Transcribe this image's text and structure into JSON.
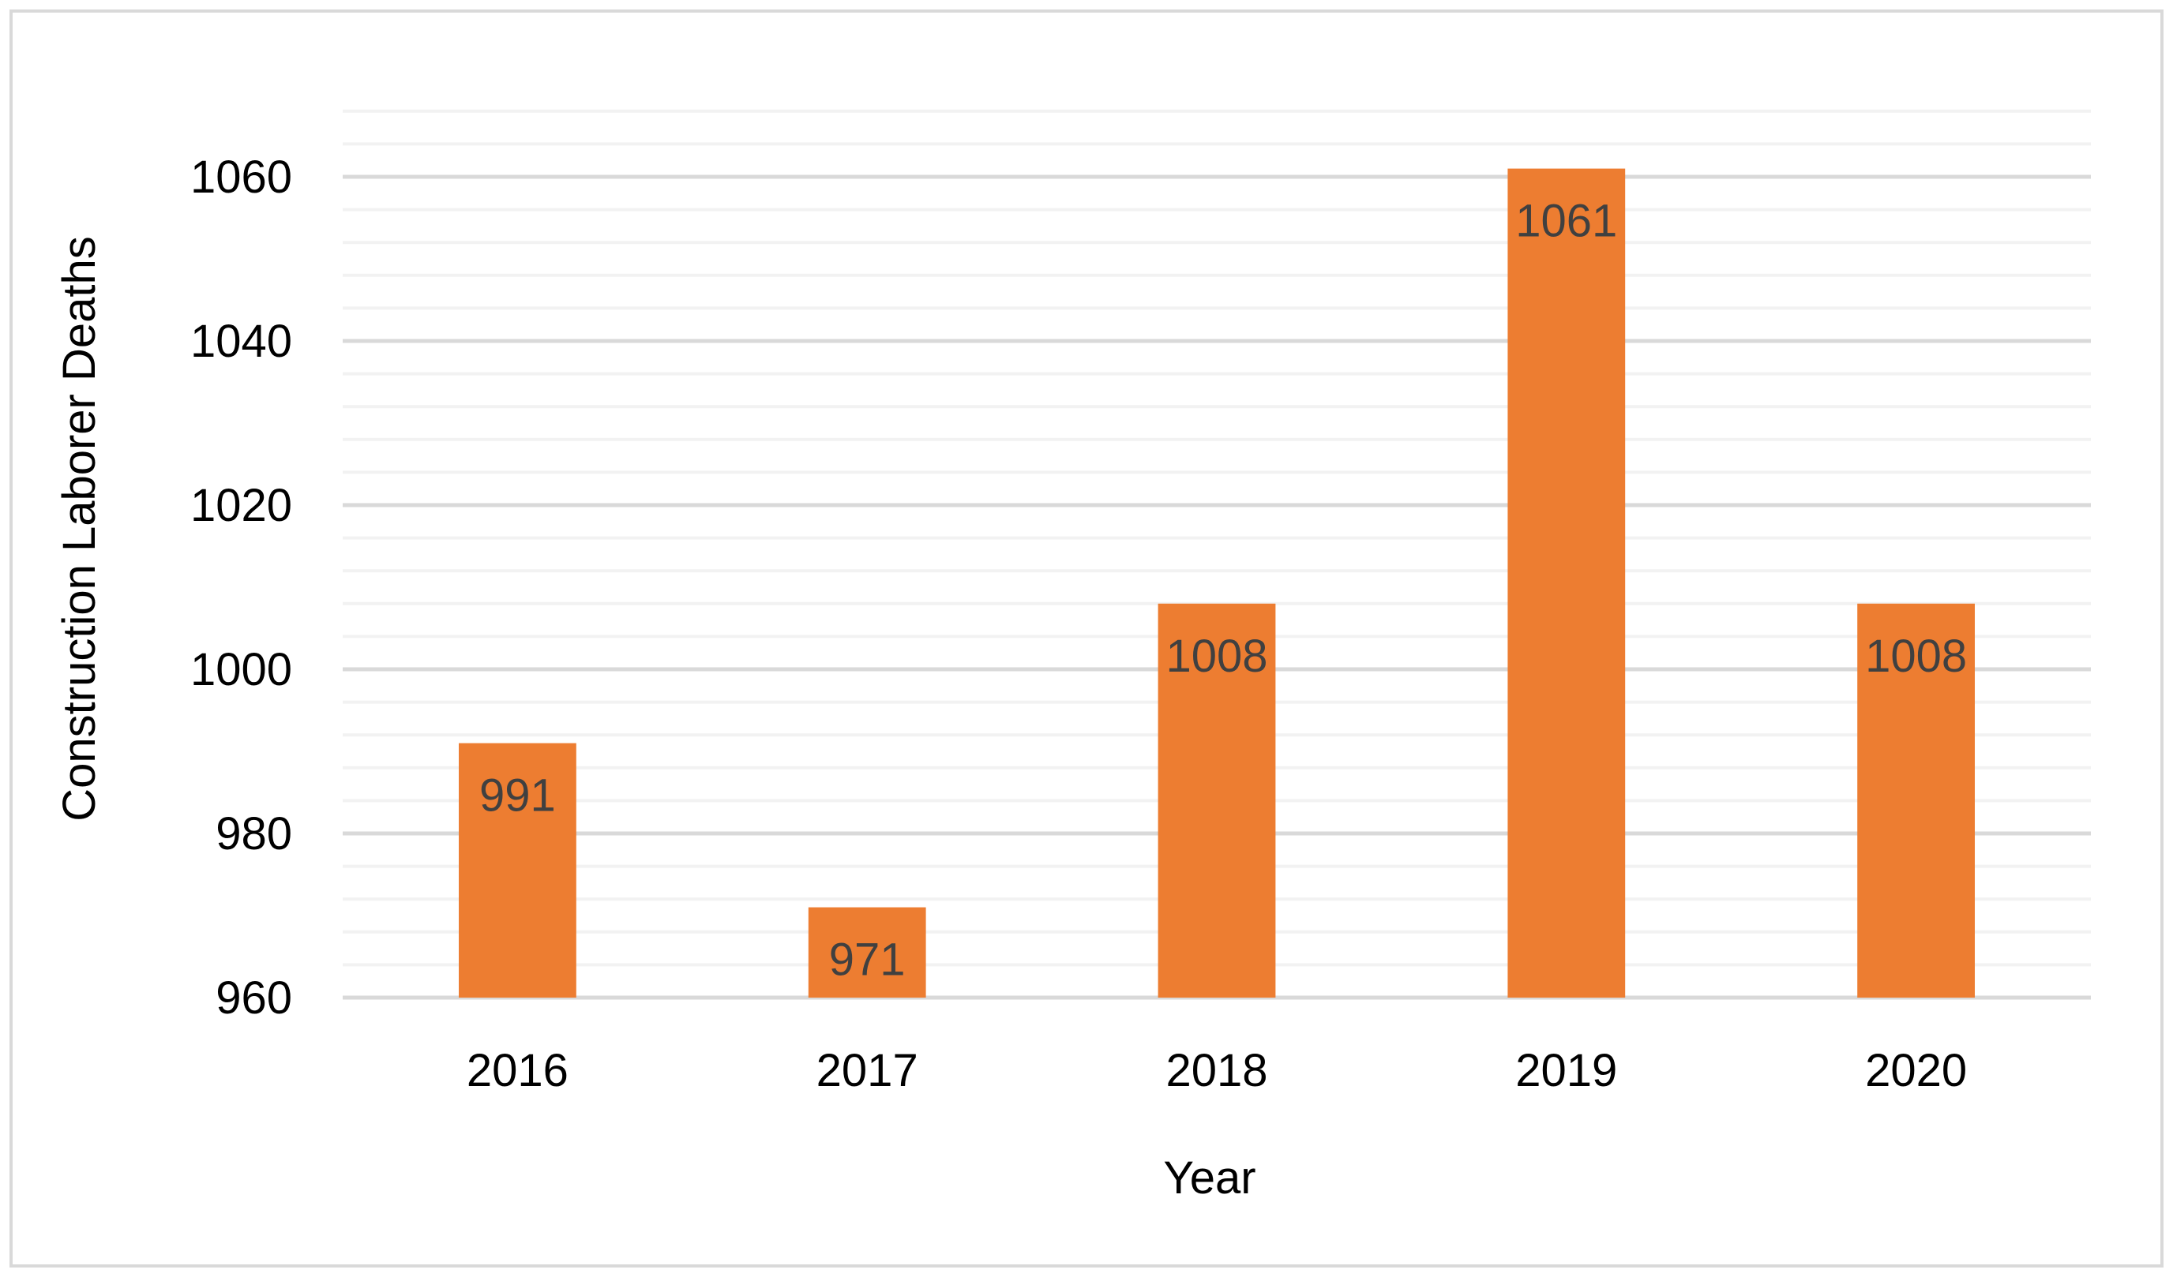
{
  "chart_data": {
    "type": "bar",
    "title": "",
    "xlabel": "Year",
    "ylabel": "Construction Laborer Deaths",
    "categories": [
      "2016",
      "2017",
      "2018",
      "2019",
      "2020"
    ],
    "series": [
      {
        "values": [
          991,
          971,
          1008,
          1061,
          1008
        ],
        "color": "#ED7D31"
      }
    ],
    "data_labels": [
      "991",
      "971",
      "1008",
      "1061",
      "1008"
    ],
    "y_ticks": [
      "960",
      "980",
      "1000",
      "1020",
      "1040",
      "1060"
    ],
    "ylim": [
      960,
      1070
    ],
    "major_gridline_step": 20,
    "minor_gridline_step": 4,
    "grid": true,
    "legend": "none",
    "colors": {
      "bar": "#ED7D31",
      "major_grid": "#D9D9D9",
      "minor_grid": "#F2F2F2",
      "frame": "#D9D9D9",
      "data_label": "#404040"
    }
  }
}
